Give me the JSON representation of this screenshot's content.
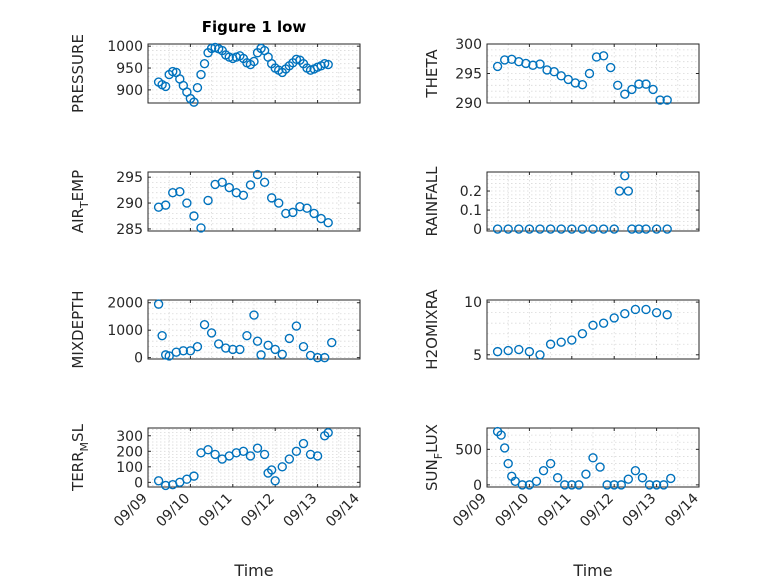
{
  "chart_data": [
    {
      "type": "scatter",
      "title": "Figure 1 low",
      "ylabel": "PRESSURE",
      "ylabel_main": "PRESSURE",
      "ylabel_sub": "",
      "ylabel_tail": "",
      "xlabel": "",
      "xlim": [
        "09/09",
        "09/14"
      ],
      "ylim": [
        870,
        1005
      ],
      "yticks": [
        900,
        950,
        1000
      ],
      "xticks": [],
      "grid": true,
      "x": [
        "09/09 06:00",
        "09/09 08:00",
        "09/09 10:00",
        "09/09 12:00",
        "09/09 14:00",
        "09/09 16:00",
        "09/09 18:00",
        "09/09 20:00",
        "09/09 22:00",
        "09/10 00:00",
        "09/10 02:00",
        "09/10 04:00",
        "09/10 06:00",
        "09/10 08:00",
        "09/10 10:00",
        "09/10 12:00",
        "09/10 14:00",
        "09/10 16:00",
        "09/10 18:00",
        "09/10 20:00",
        "09/10 22:00",
        "09/11 00:00",
        "09/11 02:00",
        "09/11 04:00",
        "09/11 06:00",
        "09/11 08:00",
        "09/11 10:00",
        "09/11 12:00",
        "09/11 14:00",
        "09/11 16:00",
        "09/11 18:00",
        "09/11 20:00",
        "09/11 22:00",
        "09/12 00:00",
        "09/12 02:00",
        "09/12 04:00",
        "09/12 06:00",
        "09/12 08:00",
        "09/12 10:00",
        "09/12 12:00",
        "09/12 14:00",
        "09/12 16:00",
        "09/12 18:00",
        "09/12 20:00",
        "09/12 22:00",
        "09/13 00:00",
        "09/13 02:00",
        "09/13 04:00",
        "09/13 06:00"
      ],
      "y": [
        918,
        912,
        908,
        935,
        942,
        940,
        925,
        910,
        895,
        880,
        872,
        905,
        935,
        960,
        985,
        995,
        997,
        994,
        990,
        980,
        975,
        972,
        975,
        978,
        972,
        962,
        958,
        965,
        985,
        995,
        990,
        975,
        960,
        950,
        945,
        940,
        948,
        955,
        962,
        970,
        968,
        960,
        950,
        945,
        948,
        952,
        955,
        960,
        958
      ]
    },
    {
      "type": "scatter",
      "title": "",
      "ylabel": "THETA",
      "ylabel_main": "THETA",
      "ylabel_sub": "",
      "ylabel_tail": "",
      "xlabel": "",
      "xlim": [
        "09/09",
        "09/14"
      ],
      "ylim": [
        290,
        300
      ],
      "yticks": [
        290,
        295,
        300
      ],
      "xticks": [],
      "grid": true,
      "x": [
        "09/09 06:00",
        "09/09 10:00",
        "09/09 14:00",
        "09/09 18:00",
        "09/09 22:00",
        "09/10 02:00",
        "09/10 06:00",
        "09/10 10:00",
        "09/10 14:00",
        "09/10 18:00",
        "09/10 22:00",
        "09/11 02:00",
        "09/11 06:00",
        "09/11 10:00",
        "09/11 14:00",
        "09/11 18:00",
        "09/11 22:00",
        "09/12 02:00",
        "09/12 06:00",
        "09/12 10:00",
        "09/12 14:00",
        "09/12 18:00",
        "09/12 22:00",
        "09/13 02:00",
        "09/13 06:00"
      ],
      "y": [
        296.2,
        297.3,
        297.4,
        297.0,
        296.7,
        296.4,
        296.6,
        295.6,
        295.3,
        294.6,
        294.0,
        293.4,
        293.1,
        295.0,
        297.8,
        298.0,
        296.0,
        293.0,
        291.5,
        292.3,
        293.2,
        293.2,
        292.3,
        290.5,
        290.5
      ]
    },
    {
      "type": "scatter",
      "title": "",
      "ylabel": "AIR_TEMP",
      "ylabel_main": "AIR",
      "ylabel_sub": "T",
      "ylabel_tail": "EMP",
      "xlabel": "",
      "xlim": [
        "09/09",
        "09/14"
      ],
      "ylim": [
        284.6,
        296
      ],
      "yticks": [
        285,
        290,
        295
      ],
      "xticks": [],
      "grid": true,
      "x": [
        "09/09 06:00",
        "09/09 10:00",
        "09/09 14:00",
        "09/09 18:00",
        "09/09 22:00",
        "09/10 02:00",
        "09/10 06:00",
        "09/10 10:00",
        "09/10 14:00",
        "09/10 18:00",
        "09/10 22:00",
        "09/11 02:00",
        "09/11 06:00",
        "09/11 10:00",
        "09/11 14:00",
        "09/11 18:00",
        "09/11 22:00",
        "09/12 02:00",
        "09/12 06:00",
        "09/12 10:00",
        "09/12 14:00",
        "09/12 18:00",
        "09/12 22:00",
        "09/13 02:00",
        "09/13 06:00"
      ],
      "y": [
        289.2,
        289.6,
        292.0,
        292.2,
        290.0,
        287.5,
        285.2,
        290.5,
        293.6,
        294.0,
        293.0,
        292.0,
        291.5,
        293.5,
        295.5,
        294.0,
        291.0,
        290.0,
        288.0,
        288.2,
        289.3,
        289.0,
        288.0,
        287.0,
        286.2
      ]
    },
    {
      "type": "scatter",
      "title": "",
      "ylabel": "RAINFALL",
      "ylabel_main": "RAINFALL",
      "ylabel_sub": "",
      "ylabel_tail": "",
      "xlabel": "",
      "xlim": [
        "09/09",
        "09/14"
      ],
      "ylim": [
        -0.01,
        0.3
      ],
      "yticks": [
        0,
        0.1,
        0.2
      ],
      "xticks": [],
      "grid": true,
      "x": [
        "09/09 06:00",
        "09/09 12:00",
        "09/09 18:00",
        "09/10 00:00",
        "09/10 06:00",
        "09/10 12:00",
        "09/10 18:00",
        "09/11 00:00",
        "09/11 06:00",
        "09/11 12:00",
        "09/11 18:00",
        "09/12 00:00",
        "09/12 03:00",
        "09/12 06:00",
        "09/12 08:00",
        "09/12 10:00",
        "09/12 14:00",
        "09/12 18:00",
        "09/13 00:00",
        "09/13 06:00"
      ],
      "y": [
        0,
        0,
        0,
        0,
        0,
        0,
        0,
        0,
        0,
        0,
        0,
        0,
        0.2,
        0.28,
        0.2,
        0,
        0,
        0,
        0,
        0
      ]
    },
    {
      "type": "scatter",
      "title": "",
      "ylabel": "MIXDEPTH",
      "ylabel_main": "MIXDEPTH",
      "ylabel_sub": "",
      "ylabel_tail": "",
      "xlabel": "",
      "xlim": [
        "09/09",
        "09/14"
      ],
      "ylim": [
        -50,
        2100
      ],
      "yticks": [
        0,
        1000,
        2000
      ],
      "xticks": [],
      "grid": true,
      "x": [
        "09/09 06:00",
        "09/09 08:00",
        "09/09 10:00",
        "09/09 12:00",
        "09/09 16:00",
        "09/09 20:00",
        "09/10 00:00",
        "09/10 04:00",
        "09/10 08:00",
        "09/10 12:00",
        "09/10 16:00",
        "09/10 20:00",
        "09/11 00:00",
        "09/11 04:00",
        "09/11 08:00",
        "09/11 12:00",
        "09/11 14:00",
        "09/11 16:00",
        "09/11 20:00",
        "09/12 00:00",
        "09/12 04:00",
        "09/12 08:00",
        "09/12 12:00",
        "09/12 16:00",
        "09/12 20:00",
        "09/13 00:00",
        "09/13 04:00",
        "09/13 08:00"
      ],
      "y": [
        1950,
        800,
        100,
        60,
        200,
        250,
        250,
        400,
        1200,
        900,
        500,
        350,
        300,
        300,
        800,
        1550,
        600,
        100,
        450,
        300,
        120,
        700,
        1150,
        400,
        80,
        0,
        0,
        550
      ]
    },
    {
      "type": "scatter",
      "title": "",
      "ylabel": "H2OMIXRA",
      "ylabel_main": "H2OMIXRA",
      "ylabel_sub": "",
      "ylabel_tail": "",
      "xlabel": "",
      "xlim": [
        "09/09",
        "09/14"
      ],
      "ylim": [
        4.6,
        10.2
      ],
      "yticks": [
        5,
        10
      ],
      "xticks": [],
      "grid": true,
      "x": [
        "09/09 06:00",
        "09/09 12:00",
        "09/09 18:00",
        "09/10 00:00",
        "09/10 06:00",
        "09/10 12:00",
        "09/10 18:00",
        "09/11 00:00",
        "09/11 06:00",
        "09/11 12:00",
        "09/11 18:00",
        "09/12 00:00",
        "09/12 06:00",
        "09/12 12:00",
        "09/12 18:00",
        "09/13 00:00",
        "09/13 06:00"
      ],
      "y": [
        5.3,
        5.4,
        5.5,
        5.3,
        5.0,
        6.0,
        6.2,
        6.4,
        7.0,
        7.8,
        8.0,
        8.5,
        8.9,
        9.3,
        9.3,
        9.0,
        8.8
      ]
    },
    {
      "type": "scatter",
      "title": "",
      "ylabel": "TERR_MSL",
      "ylabel_main": "TERR",
      "ylabel_sub": "M",
      "ylabel_tail": "SL",
      "xlabel": "Time",
      "xlim": [
        "09/09",
        "09/14"
      ],
      "ylim": [
        -30,
        350
      ],
      "yticks": [
        0,
        100,
        200,
        300
      ],
      "xticks": [
        "09/09",
        "09/10",
        "09/11",
        "09/12",
        "09/13",
        "09/14"
      ],
      "grid": true,
      "x": [
        "09/09 06:00",
        "09/09 10:00",
        "09/09 14:00",
        "09/09 18:00",
        "09/09 22:00",
        "09/10 02:00",
        "09/10 06:00",
        "09/10 10:00",
        "09/10 14:00",
        "09/10 18:00",
        "09/10 22:00",
        "09/11 02:00",
        "09/11 06:00",
        "09/11 10:00",
        "09/11 14:00",
        "09/11 18:00",
        "09/11 20:00",
        "09/11 22:00",
        "09/12 00:00",
        "09/12 04:00",
        "09/12 08:00",
        "09/12 12:00",
        "09/12 16:00",
        "09/12 20:00",
        "09/13 00:00",
        "09/13 04:00",
        "09/13 06:00"
      ],
      "y": [
        10,
        -20,
        -15,
        0,
        20,
        40,
        190,
        210,
        180,
        150,
        170,
        190,
        200,
        170,
        220,
        180,
        60,
        80,
        10,
        100,
        150,
        200,
        250,
        180,
        170,
        300,
        320
      ]
    },
    {
      "type": "scatter",
      "title": "",
      "ylabel": "SUN_FLUX",
      "ylabel_main": "SUN",
      "ylabel_sub": "F",
      "ylabel_tail": "LUX",
      "xlabel": "Time",
      "xlim": [
        "09/09",
        "09/14"
      ],
      "ylim": [
        -30,
        800
      ],
      "yticks": [
        0,
        500
      ],
      "xticks": [
        "09/09",
        "09/10",
        "09/11",
        "09/12",
        "09/13",
        "09/14"
      ],
      "grid": true,
      "x": [
        "09/09 06:00",
        "09/09 08:00",
        "09/09 10:00",
        "09/09 12:00",
        "09/09 14:00",
        "09/09 16:00",
        "09/09 20:00",
        "09/10 00:00",
        "09/10 04:00",
        "09/10 08:00",
        "09/10 12:00",
        "09/10 16:00",
        "09/10 20:00",
        "09/11 00:00",
        "09/11 04:00",
        "09/11 08:00",
        "09/11 12:00",
        "09/11 16:00",
        "09/11 20:00",
        "09/12 00:00",
        "09/12 04:00",
        "09/12 08:00",
        "09/12 12:00",
        "09/12 16:00",
        "09/12 20:00",
        "09/13 00:00",
        "09/13 04:00",
        "09/13 08:00"
      ],
      "y": [
        750,
        700,
        520,
        300,
        120,
        50,
        0,
        0,
        50,
        200,
        300,
        100,
        0,
        0,
        0,
        150,
        380,
        250,
        0,
        0,
        0,
        80,
        200,
        100,
        0,
        0,
        0,
        90
      ]
    }
  ]
}
